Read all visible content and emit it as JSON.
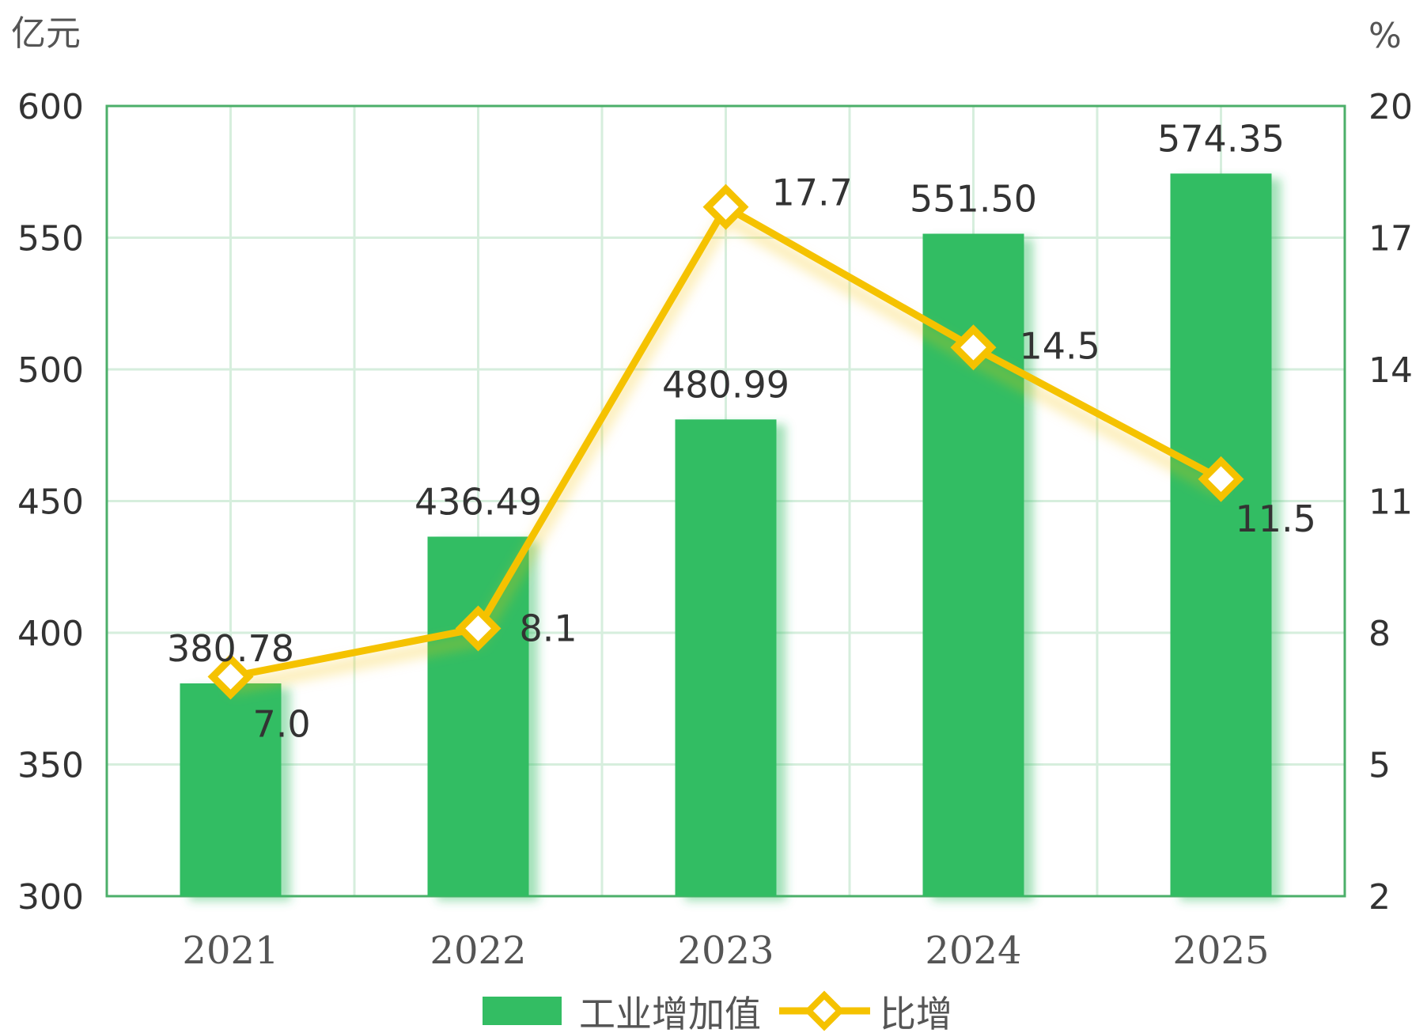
{
  "chart_data": {
    "type": "bar",
    "categories": [
      "2021",
      "2022",
      "2023",
      "2024",
      "2025"
    ],
    "y_left_unit": "亿元",
    "y_right_unit": "%",
    "y_left_ticks": [
      "300",
      "350",
      "400",
      "450",
      "500",
      "550",
      "600"
    ],
    "y_right_ticks": [
      "2",
      "5",
      "8",
      "11",
      "14",
      "17",
      "20"
    ],
    "ylim_left": [
      300,
      600
    ],
    "ylim_right": [
      2,
      20
    ],
    "grid": true,
    "legend_position": "bottom",
    "series": [
      {
        "name": "工业增加值",
        "type": "bar",
        "axis": "left",
        "values": [
          380.78,
          436.49,
          480.99,
          551.5,
          574.35
        ],
        "labels": [
          "380.78",
          "436.49",
          "480.99",
          "551.50",
          "574.35"
        ]
      },
      {
        "name": "比增",
        "type": "line",
        "axis": "right",
        "values": [
          7.0,
          8.1,
          17.7,
          14.5,
          11.5
        ],
        "labels": [
          "7.0",
          "8.1",
          "17.7",
          "14.5",
          "11.5"
        ]
      }
    ],
    "colors": {
      "bar": "#33bd63",
      "line": "#f5c200",
      "grid": "#d6eedd",
      "frame": "#4caf6a"
    }
  }
}
